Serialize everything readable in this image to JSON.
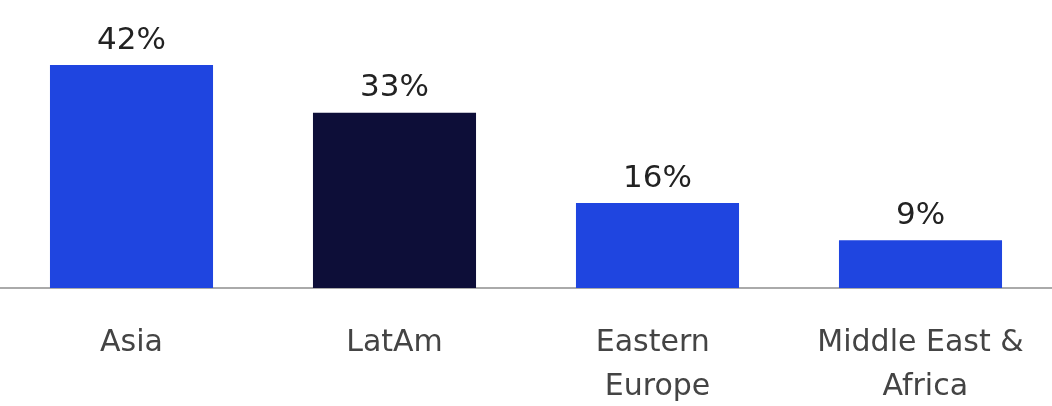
{
  "chart_data": {
    "type": "bar",
    "categories": [
      "Asia",
      "LatAm",
      "Eastern Europe",
      "Middle East & Africa"
    ],
    "values": [
      42,
      33,
      16,
      9
    ],
    "colors": [
      "#1f45e0",
      "#0d0e38",
      "#1f45e0",
      "#1f45e0"
    ],
    "value_labels": [
      "42%",
      "33%",
      "16%",
      "9%"
    ],
    "ylim": [
      0,
      42
    ],
    "tick_labels": "x"
  }
}
